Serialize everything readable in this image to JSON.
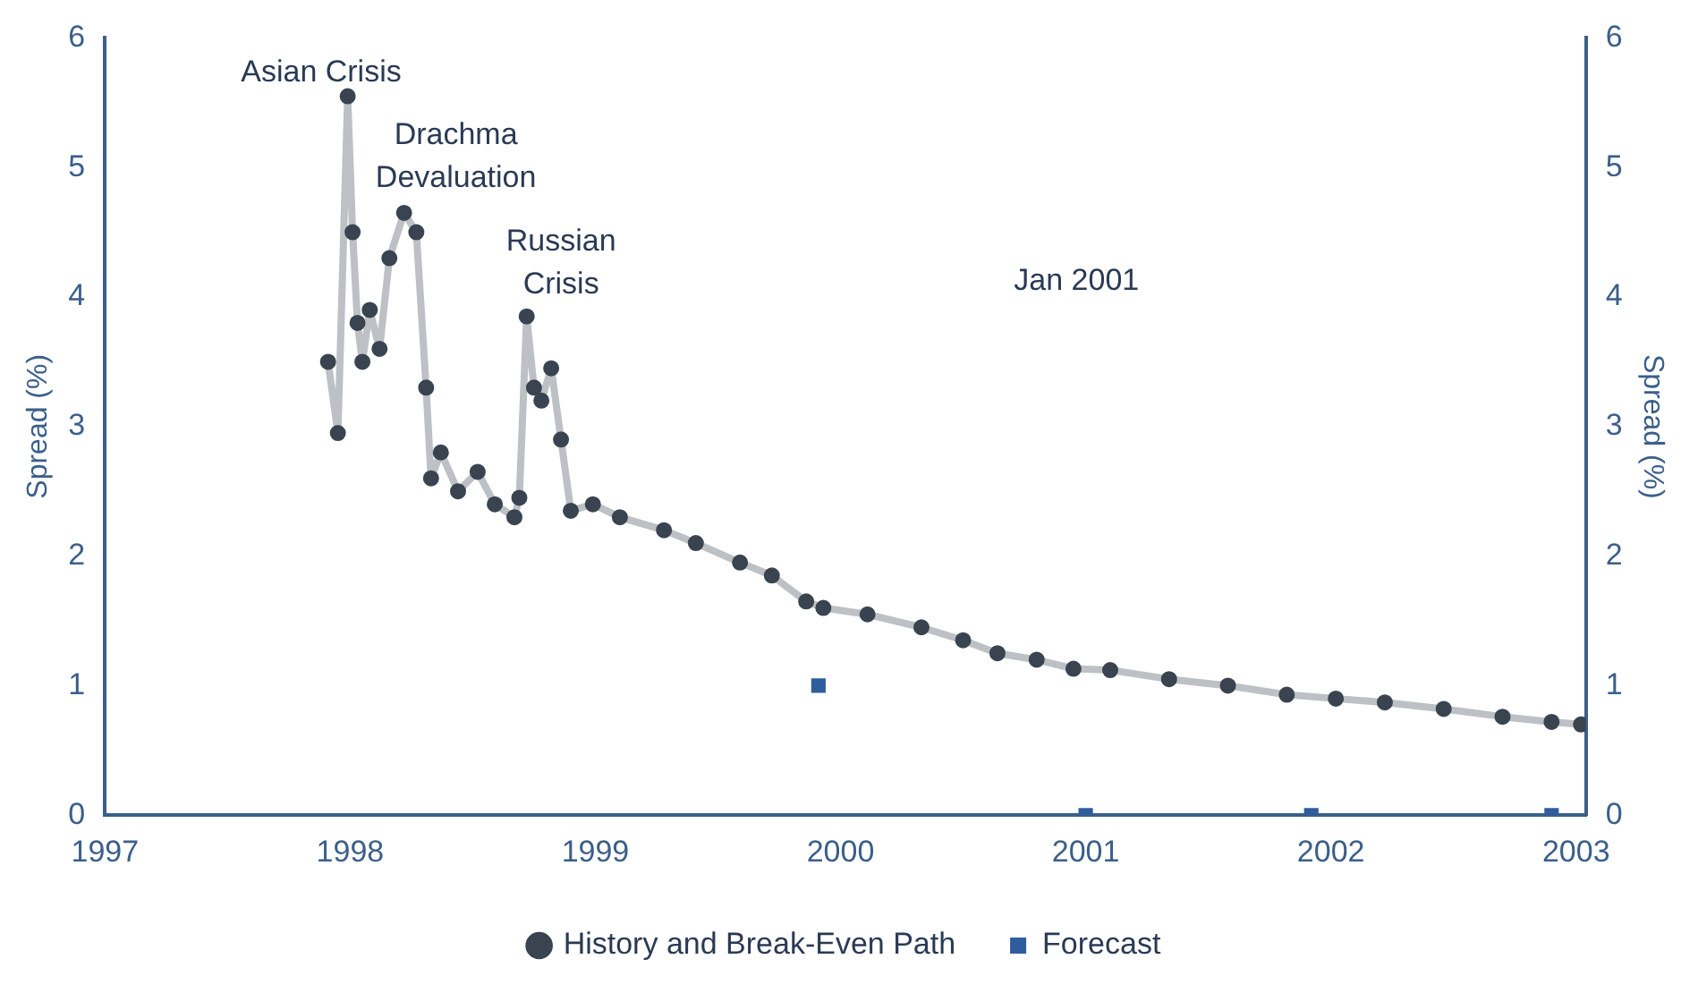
{
  "chart_data": {
    "type": "line",
    "ylabel": "Spread (%)",
    "y2label": "Spread (%)",
    "xlim": [
      1997,
      2003.04
    ],
    "xticks": [
      1997,
      1998,
      1999,
      2000,
      2001,
      2002,
      2003
    ],
    "ylim": [
      0,
      6
    ],
    "yticks": [
      0,
      1,
      2,
      3,
      4,
      5,
      6
    ],
    "y2lim": [
      0,
      6
    ],
    "y2ticks": [
      0,
      1,
      2,
      3,
      4,
      5,
      6
    ],
    "grid": false,
    "legend": "bottom",
    "series": [
      {
        "name": "History and Break-Even Path",
        "marker": "circle",
        "color": "#3a4450",
        "x": [
          1997.91,
          1997.95,
          1997.99,
          1998.01,
          1998.03,
          1998.05,
          1998.08,
          1998.12,
          1998.16,
          1998.22,
          1998.27,
          1998.31,
          1998.33,
          1998.37,
          1998.44,
          1998.52,
          1998.59,
          1998.67,
          1998.69,
          1998.72,
          1998.75,
          1998.78,
          1998.82,
          1998.86,
          1998.9,
          1998.99,
          1999.1,
          1999.28,
          1999.41,
          1999.59,
          1999.72,
          1999.86,
          1999.93,
          2000.11,
          2000.33,
          2000.5,
          2000.64,
          2000.8,
          2000.95,
          2001.1,
          2001.34,
          2001.58,
          2001.82,
          2002.02,
          2002.22,
          2002.46,
          2002.7,
          2002.9,
          2003.02
        ],
        "values": [
          3.5,
          2.95,
          5.55,
          4.5,
          3.8,
          3.5,
          3.9,
          3.6,
          4.3,
          4.65,
          4.5,
          3.3,
          2.6,
          2.8,
          2.5,
          2.65,
          2.4,
          2.3,
          2.45,
          3.85,
          3.3,
          3.2,
          3.45,
          2.9,
          2.35,
          2.4,
          2.3,
          2.2,
          2.1,
          1.95,
          1.85,
          1.65,
          1.6,
          1.55,
          1.45,
          1.35,
          1.25,
          1.2,
          1.13,
          1.12,
          1.05,
          1.0,
          0.93,
          0.9,
          0.87,
          0.82,
          0.76,
          0.72,
          0.7
        ]
      },
      {
        "name": "Forecast",
        "type": "scatter",
        "marker": "square",
        "color": "#2e5d9e",
        "x": [
          1999.91,
          2001.0,
          2001.92,
          2002.9
        ],
        "values": [
          1,
          0,
          0,
          0
        ]
      }
    ],
    "annotations": [
      "Asian Crisis",
      "Drachma\nDevaluation",
      "Russian\nCrisis",
      "Jan 2001"
    ]
  }
}
